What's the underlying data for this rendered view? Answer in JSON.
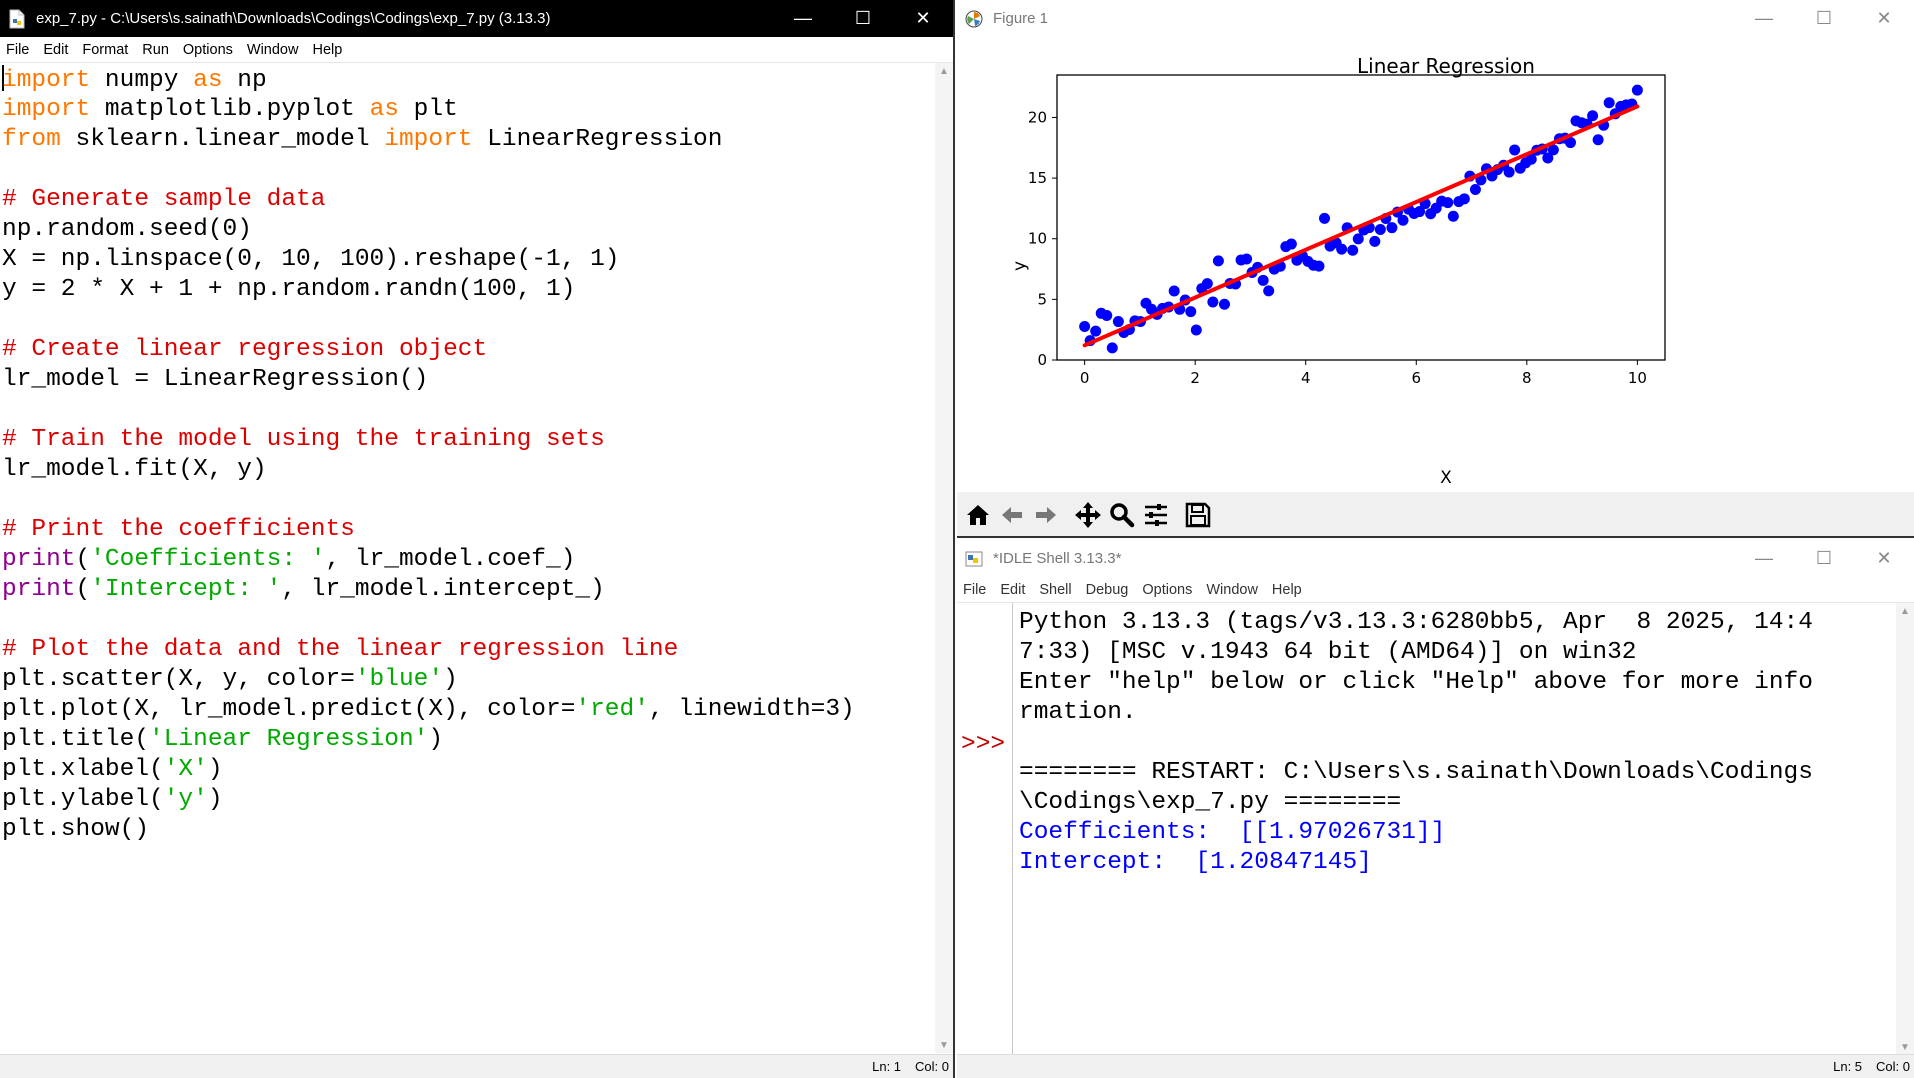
{
  "editor": {
    "title": "exp_7.py - C:\\Users\\s.sainath\\Downloads\\Codings\\Codings\\exp_7.py (3.13.3)",
    "menu": [
      "File",
      "Edit",
      "Format",
      "Run",
      "Options",
      "Window",
      "Help"
    ],
    "code": [
      [
        {
          "t": "import",
          "c": "kw"
        },
        {
          "t": " numpy "
        },
        {
          "t": "as",
          "c": "kw"
        },
        {
          "t": " np"
        }
      ],
      [
        {
          "t": "import",
          "c": "kw"
        },
        {
          "t": " matplotlib.pyplot "
        },
        {
          "t": "as",
          "c": "kw"
        },
        {
          "t": " plt"
        }
      ],
      [
        {
          "t": "from",
          "c": "kw"
        },
        {
          "t": " sklearn.linear_model "
        },
        {
          "t": "import",
          "c": "kw"
        },
        {
          "t": " LinearRegression"
        }
      ],
      [],
      [
        {
          "t": "# Generate sample data",
          "c": "cm"
        }
      ],
      [
        {
          "t": "np.random.seed(0)"
        }
      ],
      [
        {
          "t": "X = np.linspace(0, 10, 100).reshape(-1, 1)"
        }
      ],
      [
        {
          "t": "y = 2 * X + 1 + np.random.randn(100, 1)"
        }
      ],
      [],
      [
        {
          "t": "# Create linear regression object",
          "c": "cm"
        }
      ],
      [
        {
          "t": "lr_model = LinearRegression()"
        }
      ],
      [],
      [
        {
          "t": "# Train the model using the training sets",
          "c": "cm"
        }
      ],
      [
        {
          "t": "lr_model.fit(X, y)"
        }
      ],
      [],
      [
        {
          "t": "# Print the coefficients",
          "c": "cm"
        }
      ],
      [
        {
          "t": "print",
          "c": "bi"
        },
        {
          "t": "("
        },
        {
          "t": "'Coefficients: '",
          "c": "st"
        },
        {
          "t": ", lr_model.coef_)"
        }
      ],
      [
        {
          "t": "print",
          "c": "bi"
        },
        {
          "t": "("
        },
        {
          "t": "'Intercept: '",
          "c": "st"
        },
        {
          "t": ", lr_model.intercept_)"
        }
      ],
      [],
      [
        {
          "t": "# Plot the data and the linear regression line",
          "c": "cm"
        }
      ],
      [
        {
          "t": "plt.scatter(X, y, color="
        },
        {
          "t": "'blue'",
          "c": "st"
        },
        {
          "t": ")"
        }
      ],
      [
        {
          "t": "plt.plot(X, lr_model.predict(X), color="
        },
        {
          "t": "'red'",
          "c": "st"
        },
        {
          "t": ", linewidth=3)"
        }
      ],
      [
        {
          "t": "plt.title("
        },
        {
          "t": "'Linear Regression'",
          "c": "st"
        },
        {
          "t": ")"
        }
      ],
      [
        {
          "t": "plt.xlabel("
        },
        {
          "t": "'X'",
          "c": "st"
        },
        {
          "t": ")"
        }
      ],
      [
        {
          "t": "plt.ylabel("
        },
        {
          "t": "'y'",
          "c": "st"
        },
        {
          "t": ")"
        }
      ],
      [
        {
          "t": "plt.show()"
        }
      ]
    ],
    "status_ln": "Ln: 1",
    "status_col": "Col: 0"
  },
  "figure": {
    "title": "Figure 1",
    "toolbar": [
      "home-icon",
      "back-arrow-icon",
      "forward-arrow-icon",
      "pan-icon",
      "zoom-icon",
      "configure-subplots-icon",
      "save-icon"
    ]
  },
  "shell": {
    "title": "*IDLE Shell 3.13.3*",
    "menu": [
      "File",
      "Edit",
      "Shell",
      "Debug",
      "Options",
      "Window",
      "Help"
    ],
    "prompt": ">>>",
    "lines": [
      {
        "t": "Python 3.13.3 (tags/v3.13.3:6280bb5, Apr  8 2025, 14:4"
      },
      {
        "t": "7:33) [MSC v.1943 64 bit (AMD64)] on win32"
      },
      {
        "t": "Enter \"help\" below or click \"Help\" above for more info"
      },
      {
        "t": "rmation."
      },
      {
        "t": ""
      },
      {
        "t": "======== RESTART: C:\\Users\\s.sainath\\Downloads\\Codings"
      },
      {
        "t": "\\Codings\\exp_7.py ========"
      },
      {
        "t": "Coefficients:  [[1.97026731]]",
        "c": "out"
      },
      {
        "t": "Intercept:  [1.20847145]",
        "c": "out"
      }
    ],
    "status_ln": "Ln: 5",
    "status_col": "Col: 0"
  },
  "chart_data": {
    "type": "scatter",
    "title": "Linear Regression",
    "xlabel": "X",
    "ylabel": "y",
    "xlim": [
      -0.5,
      10.5
    ],
    "ylim": [
      0,
      23.5
    ],
    "xticks": [
      0,
      2,
      4,
      6,
      8,
      10
    ],
    "yticks": [
      0,
      5,
      10,
      15,
      20
    ],
    "grid": false,
    "scatter_color": "#0000ff",
    "line_color": "#ff0000",
    "points": {
      "x": [
        0.0,
        0.1,
        0.2,
        0.3,
        0.4,
        0.5,
        0.61,
        0.71,
        0.81,
        0.91,
        1.01,
        1.11,
        1.21,
        1.31,
        1.41,
        1.52,
        1.62,
        1.72,
        1.82,
        1.92,
        2.02,
        2.12,
        2.22,
        2.32,
        2.42,
        2.53,
        2.63,
        2.73,
        2.83,
        2.93,
        3.03,
        3.13,
        3.23,
        3.33,
        3.43,
        3.54,
        3.64,
        3.74,
        3.84,
        3.94,
        4.04,
        4.14,
        4.24,
        4.34,
        4.44,
        4.55,
        4.65,
        4.75,
        4.85,
        4.95,
        5.05,
        5.15,
        5.25,
        5.35,
        5.45,
        5.56,
        5.66,
        5.76,
        5.86,
        5.96,
        6.06,
        6.16,
        6.26,
        6.36,
        6.46,
        6.57,
        6.67,
        6.77,
        6.87,
        6.97,
        7.07,
        7.17,
        7.27,
        7.37,
        7.47,
        7.58,
        7.68,
        7.78,
        7.88,
        7.98,
        8.08,
        8.18,
        8.28,
        8.38,
        8.48,
        8.59,
        8.69,
        8.79,
        8.89,
        8.99,
        9.09,
        9.19,
        9.29,
        9.39,
        9.49,
        9.6,
        9.7,
        9.8,
        9.9,
        10.0
      ],
      "y": [
        2.76,
        1.6,
        2.38,
        3.85,
        3.67,
        1.0,
        3.17,
        2.27,
        2.52,
        3.23,
        3.17,
        4.68,
        4.18,
        3.76,
        4.26,
        4.37,
        5.69,
        4.18,
        4.95,
        3.99,
        2.47,
        5.89,
        6.3,
        4.78,
        8.17,
        4.6,
        6.31,
        6.27,
        8.25,
        8.33,
        7.22,
        7.64,
        6.57,
        5.7,
        7.49,
        7.73,
        9.35,
        9.56,
        8.23,
        8.58,
        8.13,
        7.81,
        7.74,
        11.68,
        9.39,
        9.66,
        9.14,
        10.9,
        9.05,
        9.99,
        10.72,
        10.92,
        9.78,
        10.76,
        11.67,
        10.91,
        12.19,
        11.52,
        12.43,
        12.08,
        12.24,
        12.9,
        12.06,
        12.52,
        13.1,
        12.98,
        11.85,
        13.06,
        13.29,
        15.16,
        14.06,
        14.85,
        15.77,
        15.17,
        15.7,
        16.06,
        15.49,
        17.32,
        15.81,
        16.26,
        16.55,
        17.3,
        17.4,
        16.66,
        17.33,
        18.24,
        18.29,
        17.93,
        19.72,
        19.56,
        19.45,
        20.14,
        18.16,
        19.36,
        21.21,
        20.3,
        20.91,
        21.04,
        21.11,
        22.25
      ]
    },
    "fit_line": {
      "x": [
        0,
        10
      ],
      "y": [
        1.20847145,
        20.91114455
      ]
    }
  }
}
